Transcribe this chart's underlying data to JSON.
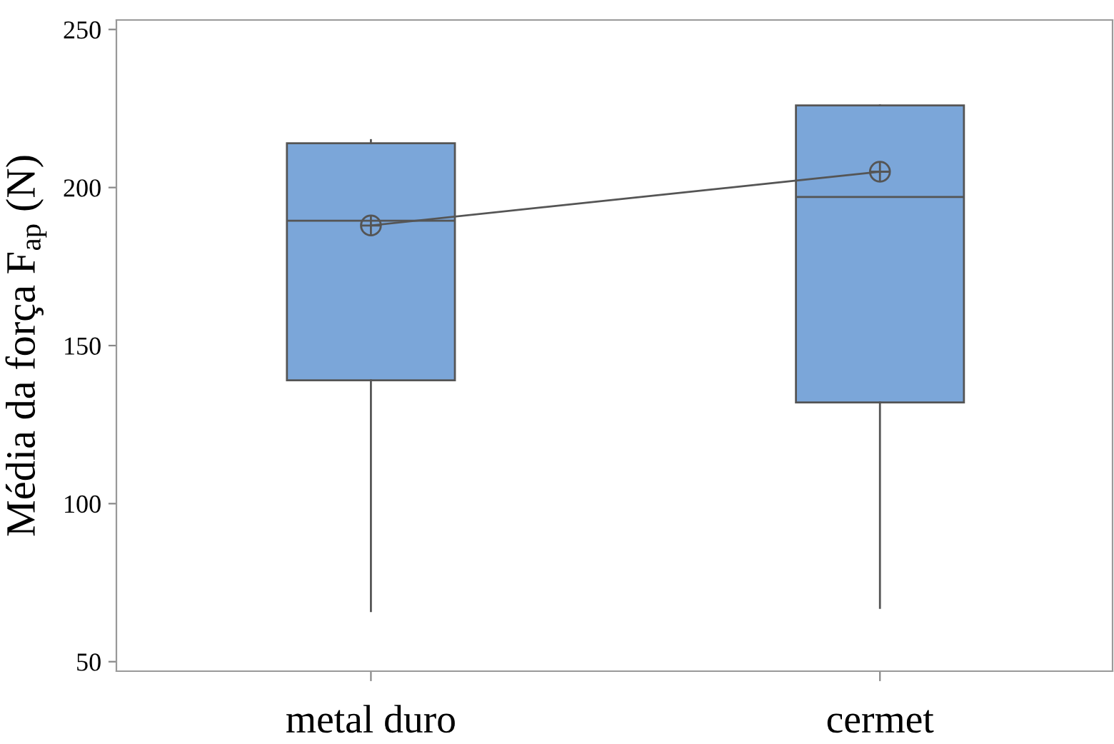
{
  "chart_data": {
    "type": "box",
    "ylabel": "Média da força F$_{ap}$ (N)",
    "categories": [
      "metal duro",
      "cermet"
    ],
    "series": [
      {
        "color": "#7ba6d9",
        "boxes": [
          {
            "low": 66,
            "q1": 139,
            "median": 189.5,
            "q3": 214,
            "high": 215,
            "mean": 188
          },
          {
            "low": 67,
            "q1": 132,
            "median": 197,
            "q3": 226,
            "high": 226,
            "mean": 205
          }
        ]
      },
      {
        "type": "line",
        "color": "#555555",
        "x": [
          "metal duro",
          "cermet"
        ],
        "values": [
          188,
          205
        ]
      }
    ],
    "ylim": [
      47,
      253
    ],
    "yticks": [
      50,
      100,
      150,
      200,
      250
    ],
    "grid": false,
    "legend": false
  }
}
